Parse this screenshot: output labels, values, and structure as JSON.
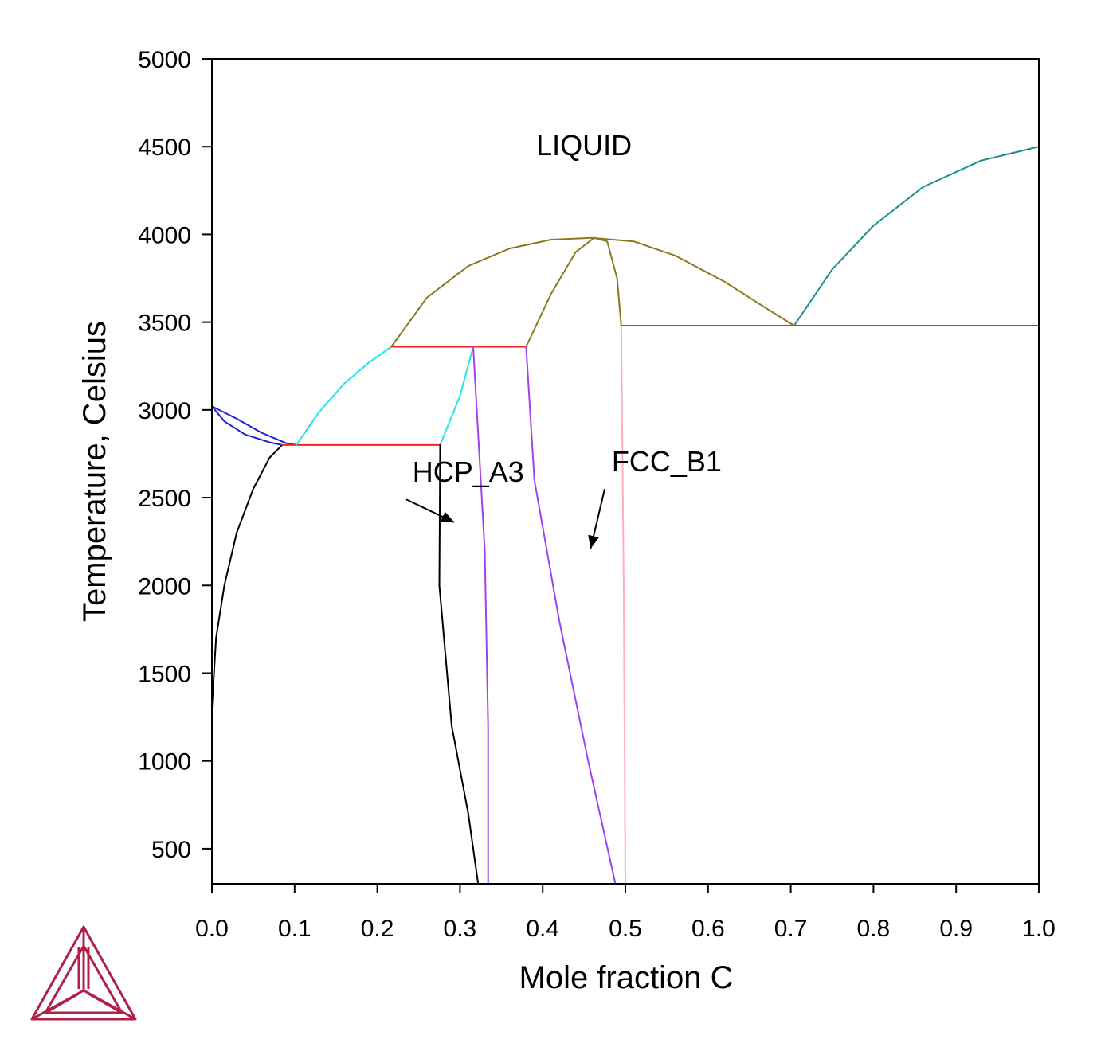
{
  "chart_data": {
    "type": "line",
    "title": "",
    "xlabel": "Mole fraction C",
    "ylabel": "Temperature, Celsius",
    "xlim": [
      0.0,
      1.0
    ],
    "ylim": [
      300,
      5000
    ],
    "xticks": [
      "0.0",
      "0.1",
      "0.2",
      "0.3",
      "0.4",
      "0.5",
      "0.6",
      "0.7",
      "0.8",
      "0.9",
      "1.0"
    ],
    "yticks": [
      "500",
      "1000",
      "1500",
      "2000",
      "2500",
      "3000",
      "3500",
      "4000",
      "4500",
      "5000"
    ],
    "grid": false,
    "annotations": [
      {
        "text": "LIQUID",
        "x": 0.45,
        "y": 4450
      },
      {
        "text": "HCP_A3",
        "x": 0.31,
        "y": 2590
      },
      {
        "text": "FCC_B1",
        "x": 0.55,
        "y": 2650
      }
    ],
    "arrows": [
      {
        "from": [
          0.235,
          2490
        ],
        "to": [
          0.293,
          2360
        ]
      },
      {
        "from": [
          0.475,
          2550
        ],
        "to": [
          0.458,
          2210
        ]
      }
    ],
    "series": [
      {
        "color": "#1f1fcc",
        "points": [
          [
            0.0,
            3020
          ],
          [
            0.03,
            2950
          ],
          [
            0.06,
            2870
          ],
          [
            0.09,
            2810
          ],
          [
            0.102,
            2800
          ]
        ]
      },
      {
        "color": "#1f1fcc",
        "points": [
          [
            0.0,
            3020
          ],
          [
            0.015,
            2935
          ],
          [
            0.04,
            2860
          ],
          [
            0.07,
            2815
          ],
          [
            0.085,
            2800
          ]
        ]
      },
      {
        "color": "#000000",
        "points": [
          [
            0.0,
            1300
          ],
          [
            0.005,
            1700
          ],
          [
            0.015,
            2000
          ],
          [
            0.03,
            2300
          ],
          [
            0.05,
            2550
          ],
          [
            0.07,
            2730
          ],
          [
            0.085,
            2800
          ]
        ]
      },
      {
        "color": "#ff2020",
        "points": [
          [
            0.085,
            2800
          ],
          [
            0.276,
            2800
          ]
        ]
      },
      {
        "color": "#22e5e5",
        "points": [
          [
            0.102,
            2800
          ],
          [
            0.13,
            2990
          ],
          [
            0.16,
            3150
          ],
          [
            0.19,
            3270
          ],
          [
            0.217,
            3360
          ]
        ]
      },
      {
        "color": "#ff2020",
        "points": [
          [
            0.217,
            3360
          ],
          [
            0.38,
            3360
          ]
        ]
      },
      {
        "color": "#22e5e5",
        "points": [
          [
            0.276,
            2800
          ],
          [
            0.3,
            3080
          ],
          [
            0.316,
            3360
          ]
        ]
      },
      {
        "color": "#000000",
        "points": [
          [
            0.276,
            2800
          ],
          [
            0.275,
            2000
          ],
          [
            0.29,
            1200
          ],
          [
            0.31,
            700
          ],
          [
            0.322,
            300
          ]
        ]
      },
      {
        "color": "#a040f0",
        "points": [
          [
            0.316,
            3360
          ],
          [
            0.33,
            2200
          ],
          [
            0.334,
            1200
          ],
          [
            0.334,
            300
          ]
        ]
      },
      {
        "color": "#a040f0",
        "points": [
          [
            0.38,
            3360
          ],
          [
            0.39,
            2600
          ],
          [
            0.42,
            1800
          ],
          [
            0.455,
            1000
          ],
          [
            0.488,
            300
          ]
        ]
      },
      {
        "color": "#8b7a1a",
        "points": [
          [
            0.217,
            3360
          ],
          [
            0.26,
            3640
          ],
          [
            0.31,
            3820
          ],
          [
            0.36,
            3920
          ],
          [
            0.41,
            3970
          ],
          [
            0.46,
            3980
          ],
          [
            0.51,
            3960
          ],
          [
            0.56,
            3880
          ],
          [
            0.62,
            3730
          ],
          [
            0.67,
            3580
          ],
          [
            0.704,
            3480
          ]
        ]
      },
      {
        "color": "#8b7a1a",
        "points": [
          [
            0.38,
            3360
          ],
          [
            0.41,
            3660
          ],
          [
            0.44,
            3900
          ],
          [
            0.462,
            3980
          ],
          [
            0.478,
            3960
          ],
          [
            0.49,
            3750
          ],
          [
            0.495,
            3480
          ]
        ]
      },
      {
        "color": "#ff2020",
        "points": [
          [
            0.495,
            3480
          ],
          [
            1.0,
            3480
          ]
        ]
      },
      {
        "color": "#ffb0b8",
        "points": [
          [
            0.495,
            3480
          ],
          [
            0.498,
            2000
          ],
          [
            0.5,
            300
          ]
        ]
      },
      {
        "color": "#1a8f8f",
        "points": [
          [
            0.704,
            3480
          ],
          [
            0.75,
            3800
          ],
          [
            0.8,
            4050
          ],
          [
            0.86,
            4270
          ],
          [
            0.93,
            4420
          ],
          [
            1.0,
            4500
          ]
        ]
      },
      {
        "color": "#1a8f8f",
        "points": [
          [
            1.0,
            3480
          ],
          [
            1.0,
            4500
          ]
        ]
      }
    ]
  }
}
